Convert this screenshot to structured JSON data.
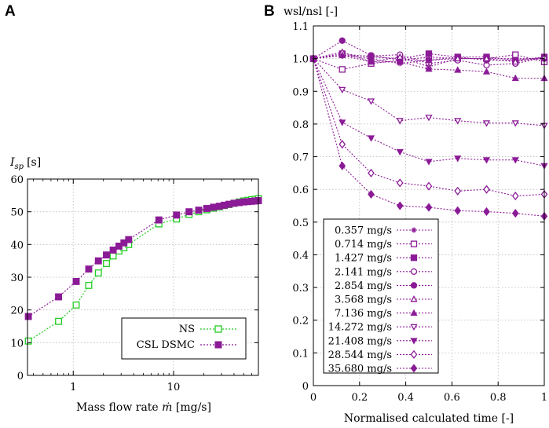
{
  "chart_data": [
    {
      "panel": "A",
      "type": "line",
      "xscale": "log",
      "ylabel_symbol": "I",
      "ylabel_subscript": "sp",
      "ylabel_unit": "[s]",
      "xlabel_text": "Mass flow rate",
      "xlabel_symbol": "ṁ",
      "xlabel_unit": "[mg/s]",
      "xlim": [
        0.35,
        70
      ],
      "ylim": [
        0,
        60
      ],
      "xticks": [
        1,
        10
      ],
      "xtick_labels": [
        "1",
        "10"
      ],
      "yticks": [
        0,
        10,
        20,
        30,
        40,
        50,
        60
      ],
      "ytick_labels": [
        "0",
        "10",
        "20",
        "30",
        "40",
        "50",
        "60"
      ],
      "legend_position": "bottom-right",
      "series": [
        {
          "name": "NS",
          "color": "#22cc22",
          "marker": "square-open",
          "x": [
            0.357,
            0.714,
            1.07,
            1.427,
            1.78,
            2.141,
            2.5,
            2.854,
            3.2,
            3.568,
            7.136,
            10.7,
            14.272,
            17.8,
            21.408,
            25,
            28.544,
            32,
            35.68,
            40,
            45,
            50,
            55,
            60,
            65,
            70
          ],
          "y": [
            10.5,
            16.5,
            21.5,
            27.5,
            31.3,
            34.2,
            36.5,
            38.0,
            39.0,
            40.0,
            46.3,
            47.8,
            49.2,
            50.0,
            50.6,
            51.1,
            51.5,
            51.9,
            52.2,
            52.6,
            53.0,
            53.3,
            53.5,
            53.7,
            53.8,
            54.0
          ]
        },
        {
          "name": "CSL DSMC",
          "color": "#8b1a96",
          "marker": "square-filled",
          "x": [
            0.357,
            0.714,
            1.07,
            1.427,
            1.78,
            2.141,
            2.5,
            2.854,
            3.2,
            3.568,
            7.136,
            10.7,
            14.272,
            17.8,
            21.408,
            25,
            28.544,
            32,
            35.68,
            40,
            45,
            50,
            55,
            60,
            65,
            70
          ],
          "y": [
            18.0,
            24.0,
            28.7,
            32.5,
            35.0,
            36.8,
            38.3,
            39.5,
            40.5,
            41.5,
            47.5,
            49.0,
            50.0,
            50.5,
            51.0,
            51.4,
            51.7,
            52.0,
            52.3,
            52.6,
            52.8,
            53.0,
            53.1,
            53.2,
            53.3,
            53.4
          ]
        }
      ]
    },
    {
      "panel": "B",
      "type": "line",
      "ylabel": "wsl/nsl [-]",
      "xlabel": "Normalised calculated time [-]",
      "xlim": [
        0,
        1
      ],
      "ylim": [
        0,
        1.1
      ],
      "xticks": [
        0,
        0.2,
        0.4,
        0.6,
        0.8,
        1
      ],
      "xtick_labels": [
        "0",
        "0.2",
        "0.4",
        "0.6",
        "0.8",
        "1"
      ],
      "yticks": [
        0,
        0.1,
        0.2,
        0.3,
        0.4,
        0.5,
        0.6,
        0.7,
        0.8,
        0.9,
        1.0,
        1.1
      ],
      "ytick_labels": [
        "0",
        "0.1",
        "0.2",
        "0.3",
        "0.4",
        "0.5",
        "0.6",
        "0.7",
        "0.8",
        "0.9",
        "1.0",
        "1.1"
      ],
      "x": [
        0,
        0.125,
        0.25,
        0.375,
        0.5,
        0.625,
        0.75,
        0.875,
        1.0
      ],
      "color": "#8b1a96",
      "legend_position": "bottom-left",
      "series": [
        {
          "name": "0.357 mg/s",
          "marker": "star",
          "values": [
            1.0,
            1.01,
            1.0,
            0.985,
            0.995,
            1.0,
            1.0,
            1.0,
            1.0
          ]
        },
        {
          "name": "0.714 mg/s",
          "marker": "square-open",
          "values": [
            1.0,
            0.967,
            0.985,
            0.995,
            1.005,
            1.0,
            1.0,
            1.012,
            0.99
          ]
        },
        {
          "name": "1.427 mg/s",
          "marker": "square-filled",
          "values": [
            1.0,
            1.015,
            1.005,
            1.0,
            1.015,
            1.005,
            1.005,
            0.995,
            1.005
          ]
        },
        {
          "name": "2.141 mg/s",
          "marker": "circle-open",
          "values": [
            1.0,
            1.01,
            1.008,
            1.012,
            0.985,
            0.995,
            0.98,
            0.985,
            1.003
          ]
        },
        {
          "name": "2.854 mg/s",
          "marker": "circle-filled",
          "values": [
            1.0,
            1.055,
            1.01,
            0.995,
            0.995,
            1.005,
            0.995,
            0.995,
            1.0
          ]
        },
        {
          "name": "3.568 mg/s",
          "marker": "triangle-open",
          "values": [
            1.0,
            1.02,
            0.99,
            1.005,
            0.975,
            1.0,
            1.0,
            0.99,
            1.005
          ]
        },
        {
          "name": "7.136 mg/s",
          "marker": "triangle-filled",
          "values": [
            1.0,
            1.01,
            0.99,
            0.99,
            0.968,
            0.965,
            0.96,
            0.94,
            0.94
          ]
        },
        {
          "name": "14.272 mg/s",
          "marker": "triangle-down-open",
          "values": [
            1.0,
            0.905,
            0.87,
            0.81,
            0.82,
            0.81,
            0.803,
            0.803,
            0.795
          ]
        },
        {
          "name": "21.408 mg/s",
          "marker": "triangle-down-filled",
          "values": [
            1.0,
            0.805,
            0.757,
            0.715,
            0.685,
            0.695,
            0.69,
            0.69,
            0.672
          ]
        },
        {
          "name": "28.544 mg/s",
          "marker": "diamond-open",
          "values": [
            1.0,
            0.738,
            0.65,
            0.62,
            0.61,
            0.595,
            0.6,
            0.58,
            0.585
          ]
        },
        {
          "name": "35.680 mg/s",
          "marker": "diamond-filled",
          "values": [
            1.0,
            0.672,
            0.585,
            0.55,
            0.545,
            0.535,
            0.532,
            0.527,
            0.518
          ]
        }
      ]
    }
  ]
}
